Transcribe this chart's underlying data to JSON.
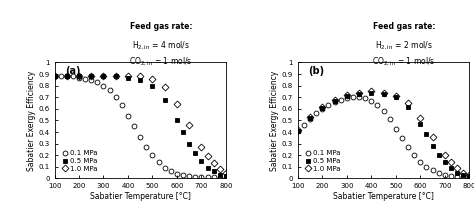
{
  "panel_a": {
    "label": "(a)",
    "title_line1": "Feed gas rate:",
    "title_line2": "H_{2,in} = 4 mol/s",
    "title_line3": "CO_{2,in} = 1 mol/s",
    "series": [
      {
        "label": "0.1 MPa",
        "marker": "o",
        "fillstyle": "none",
        "color": "black",
        "markersize": 3.5,
        "x": [
          100,
          125,
          150,
          175,
          200,
          225,
          250,
          275,
          300,
          325,
          350,
          375,
          400,
          425,
          450,
          475,
          500,
          525,
          550,
          575,
          600,
          625,
          650,
          675,
          700,
          725,
          750,
          775,
          800
        ],
        "y": [
          0.88,
          0.88,
          0.88,
          0.88,
          0.87,
          0.86,
          0.85,
          0.83,
          0.8,
          0.76,
          0.7,
          0.63,
          0.54,
          0.45,
          0.36,
          0.27,
          0.2,
          0.14,
          0.09,
          0.06,
          0.04,
          0.03,
          0.02,
          0.01,
          0.01,
          0.01,
          0.01,
          0.0,
          0.0
        ]
      },
      {
        "label": "0.5 MPa",
        "marker": "s",
        "fillstyle": "full",
        "color": "black",
        "markersize": 3.5,
        "x": [
          100,
          150,
          200,
          250,
          300,
          350,
          400,
          450,
          500,
          550,
          600,
          625,
          650,
          675,
          700,
          725,
          750,
          775,
          800
        ],
        "y": [
          0.88,
          0.88,
          0.88,
          0.88,
          0.88,
          0.88,
          0.87,
          0.85,
          0.8,
          0.68,
          0.5,
          0.4,
          0.3,
          0.22,
          0.15,
          0.09,
          0.06,
          0.03,
          0.02
        ]
      },
      {
        "label": "1.0 MPa",
        "marker": "D",
        "fillstyle": "none",
        "color": "black",
        "markersize": 3.5,
        "x": [
          100,
          150,
          200,
          250,
          300,
          350,
          400,
          450,
          500,
          550,
          600,
          650,
          700,
          725,
          750,
          775,
          800
        ],
        "y": [
          0.88,
          0.88,
          0.88,
          0.88,
          0.88,
          0.88,
          0.88,
          0.88,
          0.86,
          0.79,
          0.64,
          0.46,
          0.27,
          0.19,
          0.13,
          0.08,
          0.05
        ]
      }
    ]
  },
  "panel_b": {
    "label": "(b)",
    "title_line1": "Feed gas rate:",
    "title_line2": "H_{2,in} = 2 mol/s",
    "title_line3": "CO_{2,in} = 1 mol/s",
    "series": [
      {
        "label": "0.1 MPa",
        "marker": "o",
        "fillstyle": "none",
        "color": "black",
        "markersize": 3.5,
        "x": [
          100,
          125,
          150,
          175,
          200,
          225,
          250,
          275,
          300,
          325,
          350,
          375,
          400,
          425,
          450,
          475,
          500,
          525,
          550,
          575,
          600,
          625,
          650,
          675,
          700,
          725,
          750,
          775,
          800
        ],
        "y": [
          0.41,
          0.46,
          0.51,
          0.56,
          0.6,
          0.63,
          0.66,
          0.68,
          0.69,
          0.7,
          0.7,
          0.69,
          0.67,
          0.63,
          0.58,
          0.51,
          0.43,
          0.35,
          0.27,
          0.2,
          0.14,
          0.1,
          0.07,
          0.05,
          0.03,
          0.02,
          0.01,
          0.01,
          0.0
        ]
      },
      {
        "label": "0.5 MPa",
        "marker": "s",
        "fillstyle": "full",
        "color": "black",
        "markersize": 3.5,
        "x": [
          100,
          150,
          200,
          250,
          300,
          350,
          400,
          450,
          500,
          550,
          600,
          625,
          650,
          675,
          700,
          725,
          750,
          775,
          800
        ],
        "y": [
          0.41,
          0.52,
          0.61,
          0.67,
          0.71,
          0.73,
          0.74,
          0.73,
          0.7,
          0.62,
          0.47,
          0.38,
          0.28,
          0.2,
          0.14,
          0.09,
          0.05,
          0.03,
          0.02
        ]
      },
      {
        "label": "1.0 MPa",
        "marker": "D",
        "fillstyle": "none",
        "color": "black",
        "markersize": 3.5,
        "x": [
          100,
          150,
          200,
          250,
          300,
          350,
          400,
          450,
          500,
          550,
          600,
          650,
          700,
          725,
          750,
          775,
          800
        ],
        "y": [
          0.42,
          0.53,
          0.62,
          0.68,
          0.72,
          0.74,
          0.75,
          0.74,
          0.71,
          0.65,
          0.52,
          0.36,
          0.2,
          0.14,
          0.09,
          0.05,
          0.03
        ]
      }
    ]
  },
  "xlabel": "Sabatier Temperature [°C]",
  "ylabel": "Sabatier Exergy Efficiency",
  "xlim": [
    100,
    800
  ],
  "ylim": [
    0,
    1
  ],
  "xticks": [
    100,
    200,
    300,
    400,
    500,
    600,
    700,
    800
  ],
  "yticks": [
    0,
    0.1,
    0.2,
    0.3,
    0.4,
    0.5,
    0.6,
    0.7,
    0.8,
    0.9,
    1
  ],
  "ytick_labels": [
    "0",
    "0.1",
    "0.2",
    "0.3",
    "0.4",
    "0.5",
    "0.6",
    "0.7",
    "0.8",
    "0.9",
    "1"
  ]
}
